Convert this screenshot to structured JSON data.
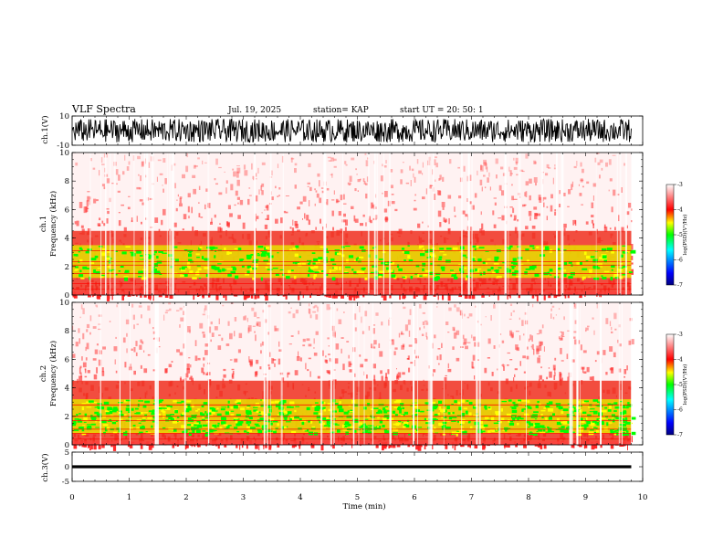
{
  "header": {
    "title": "VLF Spectra",
    "date": "Jul. 19, 2025",
    "station": "station= KAP",
    "start_time": "start UT = 20: 50: 1"
  },
  "chart_data": {
    "type": "heatmap",
    "title": "VLF Spectra",
    "xlabel": "Time (min)",
    "xlim": [
      0,
      10
    ],
    "x_ticks": [
      "0",
      "1",
      "2",
      "3",
      "4",
      "5",
      "6",
      "7",
      "8",
      "9",
      "10"
    ],
    "data_end_min": 9.8,
    "panels": [
      {
        "id": "ch1_waveform",
        "type": "line",
        "ylabel": "ch.1(V)",
        "ylim": [
          -10,
          10
        ],
        "y_ticks": [
          "10",
          "-10"
        ],
        "approx_range": [
          -8,
          8
        ]
      },
      {
        "id": "ch1_spectrogram",
        "type": "heatmap",
        "ylabel": "ch.1 Frequency (kHz)",
        "ylim": [
          0,
          10
        ],
        "y_ticks": [
          "0",
          "2",
          "4",
          "6",
          "8",
          "10"
        ],
        "band_kHz": [
          [
            1.2,
            3.5
          ]
        ],
        "colorbar": {
          "label": "log(PSD)(V²/Hz)",
          "range": [
            -7,
            -3
          ],
          "ticks": [
            "-3",
            "-4",
            "-5",
            "-6",
            "-7"
          ]
        }
      },
      {
        "id": "ch2_spectrogram",
        "type": "heatmap",
        "ylabel": "ch.2 Frequency (kHz)",
        "ylim": [
          0,
          10
        ],
        "y_ticks": [
          "0",
          "2",
          "4",
          "6",
          "8",
          "10"
        ],
        "band_kHz": [
          [
            0.8,
            3.2
          ]
        ],
        "colorbar": {
          "label": "log(PSD)(V²/Hz)",
          "range": [
            -7,
            -3
          ],
          "ticks": [
            "-3",
            "-4",
            "-5",
            "-6",
            "-7"
          ]
        }
      },
      {
        "id": "ch3_waveform",
        "type": "line",
        "ylabel": "ch.3(V)",
        "ylim": [
          -5,
          5
        ],
        "y_ticks": [
          "5",
          "0",
          "-5"
        ],
        "approx_level": [
          -0.5,
          0.5
        ]
      }
    ],
    "colormap": [
      "#0000ff",
      "#00ffff",
      "#00ff00",
      "#ffff00",
      "#ff0000",
      "#ffffff"
    ]
  }
}
